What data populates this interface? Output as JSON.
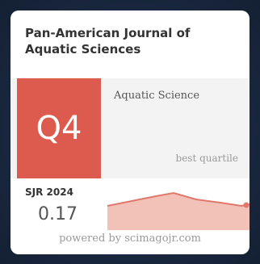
{
  "widget": {
    "journal_title": "Pan-American Journal of Aquatic Sciences",
    "quartile": "Q4",
    "category": "Aquatic Science",
    "best_quartile_label": "best quartile",
    "sjr_label": "SJR 2024",
    "sjr_value": "0.17",
    "powered_by": "powered by scimagojr.com"
  },
  "colors": {
    "background": "#1a2840",
    "card": "#ffffff",
    "quartile_box": "#dd5a4e",
    "trend_fill": "#f2c2b9",
    "trend_line": "#e0786c",
    "band": "#f3f3f3"
  }
}
